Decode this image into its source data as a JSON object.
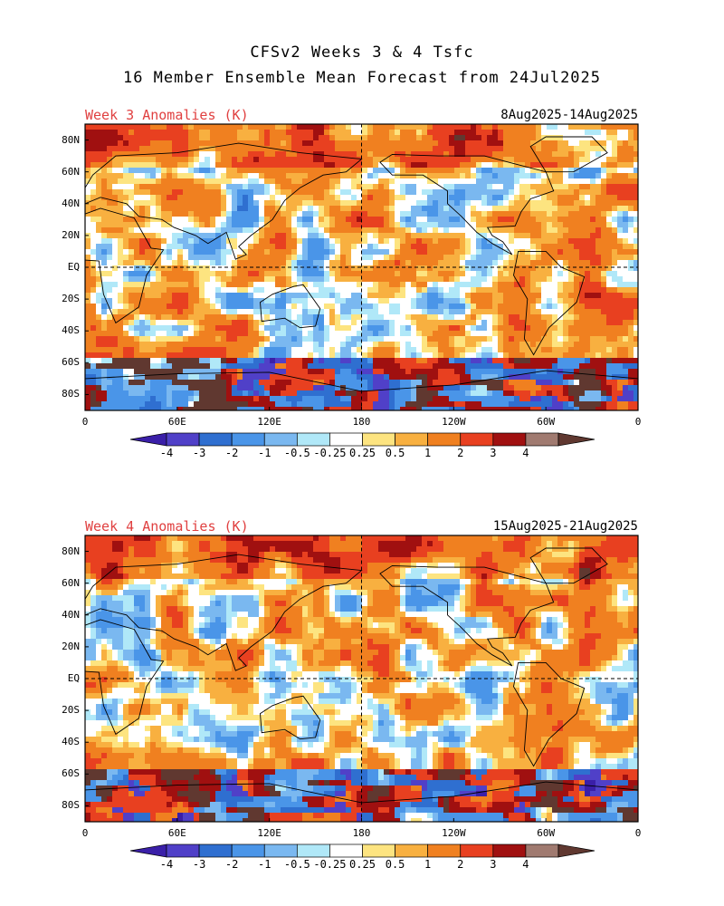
{
  "header": {
    "title_line1": "CFSv2 Weeks 3 & 4 Tsfc",
    "title_line2": "16 Member Ensemble Mean Forecast from 24Jul2025"
  },
  "panels": [
    {
      "label": "Week 3 Anomalies (K)",
      "dates": "8Aug2025-14Aug2025"
    },
    {
      "label": "Week 4 Anomalies (K)",
      "dates": "15Aug2025-21Aug2025"
    }
  ],
  "lat_labels": [
    "80N",
    "60N",
    "40N",
    "20N",
    "EQ",
    "20S",
    "40S",
    "60S",
    "80S"
  ],
  "lon_labels": [
    "0",
    "60E",
    "120E",
    "180",
    "120W",
    "60W",
    "0"
  ],
  "colorbar": {
    "labels": [
      "-4",
      "-3",
      "-2",
      "-1",
      "-0.5",
      "-0.25",
      "0.25",
      "0.5",
      "1",
      "2",
      "3",
      "4"
    ],
    "colors": [
      "#3a1fa8",
      "#5040c8",
      "#2f6fd0",
      "#4a95e8",
      "#7ab8f0",
      "#b0e8f8",
      "#ffffff",
      "#fde480",
      "#f8b040",
      "#f08020",
      "#e84020",
      "#a01010",
      "#a07a70",
      "#603830"
    ]
  }
}
